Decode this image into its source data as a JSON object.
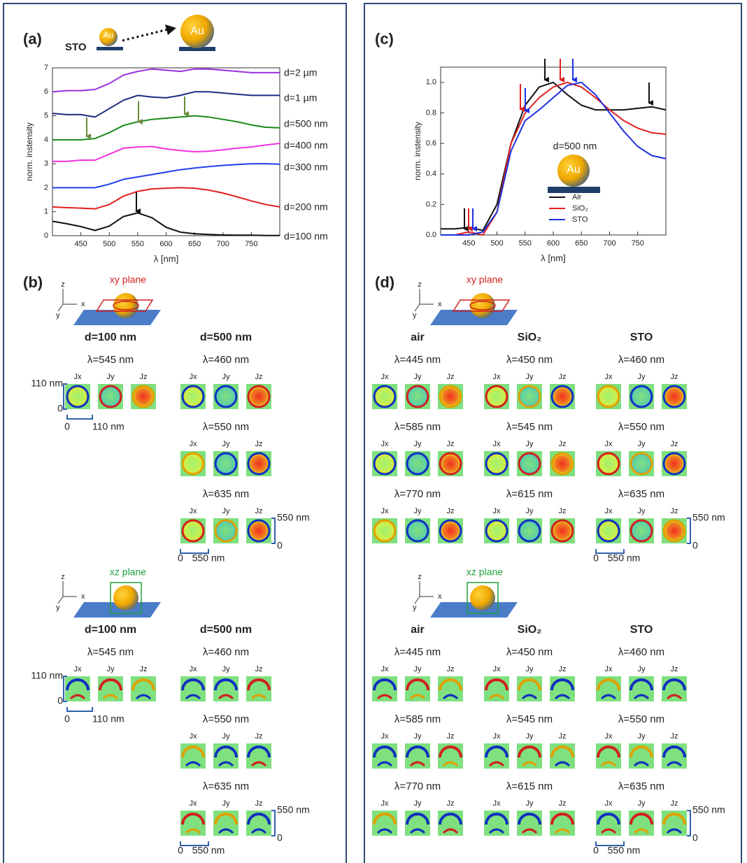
{
  "chart_data": [
    {
      "type": "line",
      "panel_label": "(a)",
      "inset": {
        "substrate": "STO",
        "particle": "Au"
      },
      "xlabel": "λ [nm]",
      "ylabel": "norm. instensity",
      "x": [
        400,
        425,
        450,
        475,
        500,
        525,
        550,
        575,
        600,
        625,
        650,
        675,
        700,
        725,
        750,
        775,
        800
      ],
      "xlim": [
        400,
        800
      ],
      "xticks": [
        450,
        500,
        550,
        600,
        650,
        700,
        750
      ],
      "ylim": [
        0,
        7
      ],
      "yticks": [
        0,
        1,
        2,
        3,
        4,
        5,
        6,
        7
      ],
      "series": [
        {
          "name": "d=2 µm",
          "color": "#9a30e0",
          "values": [
            6.0,
            6.05,
            6.05,
            6.1,
            6.35,
            6.7,
            6.85,
            6.95,
            6.9,
            6.85,
            6.95,
            6.95,
            6.9,
            6.85,
            6.8,
            6.8,
            6.8
          ]
        },
        {
          "name": "d=1 µm",
          "color": "#1c2a80",
          "values": [
            5.1,
            5.05,
            5.05,
            4.95,
            5.3,
            5.65,
            5.85,
            5.78,
            5.75,
            5.85,
            6.0,
            6.0,
            5.95,
            5.9,
            5.85,
            5.85,
            5.85
          ]
        },
        {
          "name": "d=500 nm",
          "color": "#1a8a1a",
          "values": [
            4.0,
            4.0,
            4.0,
            4.05,
            4.3,
            4.6,
            4.75,
            4.85,
            4.9,
            4.95,
            5.0,
            4.95,
            4.85,
            4.75,
            4.62,
            4.52,
            4.5
          ]
        },
        {
          "name": "d=400 nm",
          "color": "#f030e0",
          "values": [
            3.1,
            3.1,
            3.15,
            3.15,
            3.4,
            3.65,
            3.7,
            3.72,
            3.62,
            3.55,
            3.5,
            3.52,
            3.58,
            3.65,
            3.7,
            3.78,
            3.85
          ]
        },
        {
          "name": "d=300 nm",
          "color": "#2040f0",
          "values": [
            2.0,
            2.0,
            2.0,
            2.0,
            2.15,
            2.35,
            2.45,
            2.55,
            2.65,
            2.75,
            2.82,
            2.88,
            2.93,
            2.97,
            3.0,
            3.0,
            2.98
          ]
        },
        {
          "name": "d=200 nm",
          "color": "#e02020",
          "values": [
            1.2,
            1.17,
            1.15,
            1.12,
            1.3,
            1.65,
            1.85,
            1.95,
            1.98,
            2.0,
            1.98,
            1.9,
            1.78,
            1.62,
            1.45,
            1.3,
            1.2
          ]
        },
        {
          "name": "d=100 nm",
          "color": "#111111",
          "values": [
            0.6,
            0.5,
            0.38,
            0.22,
            0.4,
            0.8,
            0.95,
            0.75,
            0.35,
            0.15,
            0.08,
            0.05,
            0.03,
            0.02,
            0.02,
            0.01,
            0.01
          ]
        }
      ]
    },
    {
      "type": "line",
      "panel_label": "(c)",
      "inset": {
        "label": "d=500 nm",
        "particle": "Au"
      },
      "xlabel": "λ [nm]",
      "ylabel": "norm. instensity",
      "x": [
        400,
        425,
        450,
        475,
        500,
        525,
        550,
        575,
        600,
        625,
        650,
        675,
        700,
        725,
        750,
        775,
        800
      ],
      "xlim": [
        400,
        800
      ],
      "xticks": [
        450,
        500,
        550,
        600,
        650,
        700,
        750
      ],
      "ylim": [
        0,
        1.1
      ],
      "yticks": [
        {
          "value": 0,
          "label": "0.0"
        },
        0.2,
        0.4,
        0.6,
        0.8,
        {
          "value": 1,
          "label": "1.0"
        }
      ],
      "series": [
        {
          "name": "Air",
          "color": "#111111",
          "values": [
            0.04,
            0.04,
            0.05,
            0.03,
            0.2,
            0.6,
            0.85,
            0.97,
            1.0,
            0.92,
            0.85,
            0.82,
            0.82,
            0.82,
            0.83,
            0.84,
            0.82
          ]
        },
        {
          "name": "SiO₂",
          "color": "#e02020",
          "values": [
            0.0,
            0.0,
            0.02,
            0.0,
            0.15,
            0.6,
            0.8,
            0.9,
            0.97,
            1.0,
            0.97,
            0.9,
            0.82,
            0.75,
            0.7,
            0.67,
            0.66
          ]
        },
        {
          "name": "STO",
          "color": "#2030e0",
          "values": [
            0.0,
            0.0,
            0.0,
            0.02,
            0.15,
            0.55,
            0.75,
            0.82,
            0.9,
            0.98,
            1.0,
            0.92,
            0.8,
            0.68,
            0.58,
            0.52,
            0.5
          ]
        }
      ]
    }
  ],
  "panel_b": {
    "label": "(b)",
    "axes": {
      "z": "z",
      "x": "x",
      "y": "y"
    },
    "xy_plane": "xy plane",
    "xz_plane": "xz plane",
    "components": [
      "Jx",
      "Jy",
      "Jz"
    ],
    "groups": [
      {
        "title": "d=100 nm",
        "wavelengths": [
          "λ=545 nm"
        ],
        "scale": [
          "110 nm",
          "0",
          "0",
          "110 nm"
        ]
      },
      {
        "title": "d=500 nm",
        "wavelengths": [
          "λ=460 nm",
          "λ=550 nm",
          "λ=635 nm"
        ],
        "scale": [
          "550 nm",
          "0",
          "0",
          "550 nm"
        ]
      }
    ]
  },
  "panel_d": {
    "label": "(d)",
    "axes": {
      "z": "z",
      "x": "x",
      "y": "y"
    },
    "xy_plane": "xy plane",
    "xz_plane": "xz plane",
    "components": [
      "Jx",
      "Jy",
      "Jz"
    ],
    "groups": [
      {
        "title": "air",
        "wavelengths": [
          "λ=445 nm",
          "λ=585 nm",
          "λ=770 nm"
        ]
      },
      {
        "title": "SiO₂",
        "wavelengths": [
          "λ=450 nm",
          "λ=545 nm",
          "λ=615 nm"
        ]
      },
      {
        "title": "STO",
        "wavelengths": [
          "λ=460 nm",
          "λ=550 nm",
          "λ=635 nm"
        ],
        "scale": [
          "550 nm",
          "0",
          "0",
          "550 nm"
        ]
      }
    ]
  }
}
